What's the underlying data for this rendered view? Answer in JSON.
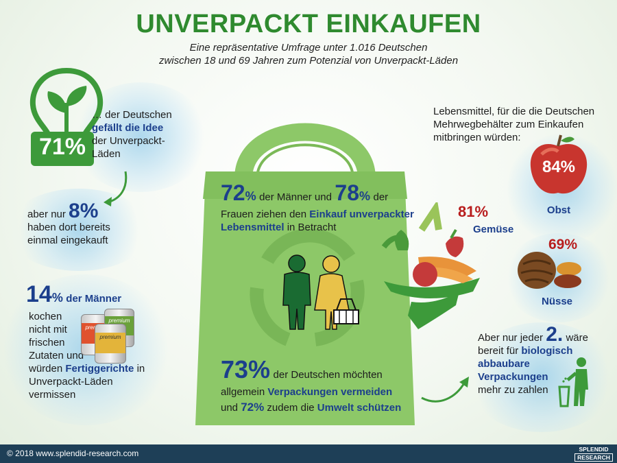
{
  "title": "UNVERPACKT EINKAUFEN",
  "subtitle_line1": "Eine repräsentative Umfrage unter 1.016 Deutschen",
  "subtitle_line2": "zwischen 18 und 69 Jahren zum Potenzial von Unverpackt-Läden",
  "idea": {
    "percent": "71%",
    "pre": "… der Deutschen",
    "highlight": "gefällt die Idee",
    "post1": "der Unverpackt-",
    "post2": "Läden"
  },
  "bought": {
    "pre": "aber nur",
    "percent": "8%",
    "line2": "haben dort bereits",
    "line3": "einmal eingekauft"
  },
  "men_cook": {
    "percent": "14",
    "percent_sign": "%",
    "head": "der Männer",
    "lines": [
      "kochen",
      "nicht mit",
      "frischen",
      "Zutaten und"
    ],
    "line5_pre": "würden",
    "line5_hl": "Fertiggerichte",
    "line5_post": "in",
    "line6": "Unverpackt-Läden",
    "line7": "vermissen"
  },
  "can_labels": [
    "premium",
    "premium",
    "premium"
  ],
  "consider": {
    "men_pct": "72",
    "pct_sign": "%",
    "men_text": "der Männer und",
    "women_pct": "78",
    "women_text": "der",
    "line2_pre": "Frauen ziehen den",
    "line2_hl": "Einkauf unverpackter",
    "line3_hl": "Lebensmittel",
    "line3_post": "in Betracht"
  },
  "avoid": {
    "pct": "73%",
    "line1": "der Deutschen möchten",
    "line2_pre": "allgemein",
    "line2_hl": "Verpackungen vermeiden",
    "line3_pre": "und",
    "line3_pct": "72%",
    "line3_mid": "zudem die",
    "line3_hl": "Umwelt schützen"
  },
  "containers": {
    "intro1": "Lebensmittel, für die die Deutschen",
    "intro2": "Mehrwegbehälter zum Einkaufen",
    "intro3": "mitbringen würden:",
    "obst_pct": "84%",
    "obst_label": "Obst",
    "gemuese_pct": "81%",
    "gemuese_label": "Gemüse",
    "nuesse_pct": "69%",
    "nuesse_label": "Nüsse"
  },
  "pay": {
    "pre": "Aber nur jeder",
    "num": "2.",
    "post": "wäre",
    "line2_pre": "bereit für",
    "line2_hl": "biologisch",
    "line3_hl": "abbaubare",
    "line4_hl": "Verpackungen",
    "line5": "mehr zu zahlen"
  },
  "footer": {
    "copyright": "© 2018 www.splendid-research.com",
    "logo_line1": "SPLENDID",
    "logo_line2": "RESEARCH"
  },
  "colors": {
    "title_green": "#2f8a2f",
    "bag_green": "#8dc868",
    "highlight_blue": "#1c3f8c",
    "red": "#b81d1d",
    "footer": "#1e3f57"
  }
}
